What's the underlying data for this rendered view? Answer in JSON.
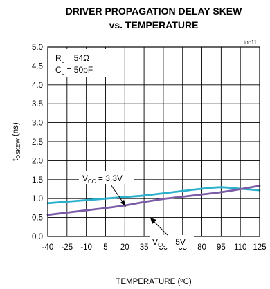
{
  "chart_data": {
    "type": "line",
    "title": "DRIVER PROPAGATION DELAY SKEW",
    "subtitle": "vs. TEMPERATURE",
    "figure_id": "toc11",
    "xlabel": "TEMPERATURE (ºC)",
    "ylabel": {
      "main": "t",
      "sub": "DSKEW",
      "suffix": " (ns)"
    },
    "xlim": [
      -40,
      125
    ],
    "ylim": [
      0.0,
      5.0
    ],
    "x_ticks": [
      "-40",
      "-25",
      "-10",
      "5",
      "20",
      "35",
      "50",
      "65",
      "80",
      "95",
      "110",
      "125"
    ],
    "y_ticks": [
      "0.0",
      "0.5",
      "1.0",
      "1.5",
      "2.0",
      "2.5",
      "3.0",
      "3.5",
      "4.0",
      "4.5",
      "5.0"
    ],
    "grid": true,
    "conditions": [
      {
        "main": "R",
        "sub": "L",
        "rest": " = 54Ω"
      },
      {
        "main": "C",
        "sub": "L",
        "rest": " = 50pF"
      }
    ],
    "series": [
      {
        "name": "VCC = 3.3V",
        "label": {
          "main": "V",
          "sub": "CC",
          "rest": " = 3.3V"
        },
        "color": "#2bb0cc",
        "x": [
          -40,
          -25,
          -10,
          5,
          20,
          35,
          50,
          65,
          80,
          95,
          110,
          125
        ],
        "y": [
          0.88,
          0.92,
          0.96,
          1.0,
          1.04,
          1.08,
          1.14,
          1.2,
          1.26,
          1.3,
          1.26,
          1.22
        ]
      },
      {
        "name": "VCC = 5V",
        "label": {
          "main": "V",
          "sub": "CC",
          "rest": " = 5V"
        },
        "color": "#7b5aa6",
        "x": [
          -40,
          -25,
          -10,
          5,
          20,
          35,
          50,
          65,
          80,
          95,
          110,
          125
        ],
        "y": [
          0.57,
          0.63,
          0.69,
          0.75,
          0.82,
          0.91,
          0.99,
          1.05,
          1.11,
          1.17,
          1.25,
          1.34
        ]
      }
    ]
  }
}
